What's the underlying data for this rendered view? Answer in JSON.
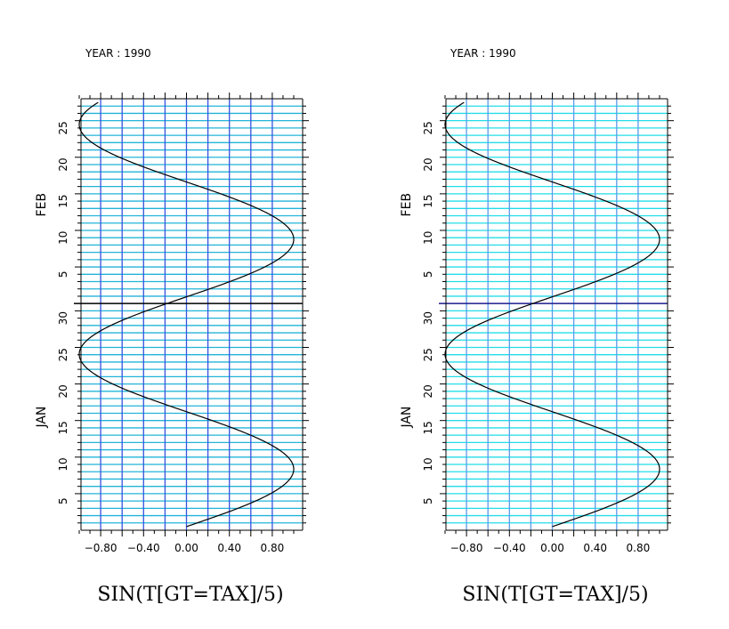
{
  "chart_data": [
    {
      "type": "line",
      "title": "YEAR : 1990",
      "xlabel": "SIN(T[GT=TAX]/5)",
      "xlim": [
        -1.0,
        1.0
      ],
      "x_ticks": [
        "-0.80",
        "-0.40",
        "0.00",
        "0.40",
        "0.80"
      ],
      "y_axis": {
        "months": [
          "JAN",
          "FEB"
        ],
        "jan_day_ticks": [
          "5",
          "10",
          "15",
          "20",
          "25",
          "30"
        ],
        "feb_day_ticks": [
          "5",
          "10",
          "15",
          "20",
          "25"
        ],
        "range": [
          "1990-01-01",
          "1990-02-28"
        ]
      },
      "grid": true,
      "colors": {
        "vertical_grid": "#3355dd",
        "horizontal_grid": "#22b4d8",
        "month_boundary": "#000000",
        "curve": "#000000"
      },
      "series": [
        {
          "x_formula": "sin(t/5), t = day index from 1990-01-01",
          "t_start": 0,
          "t_end": 58
        }
      ]
    },
    {
      "type": "line",
      "title": "YEAR : 1990",
      "xlabel": "SIN(T[GT=TAX]/5)",
      "xlim": [
        -1.0,
        1.0
      ],
      "x_ticks": [
        "-0.80",
        "-0.40",
        "0.00",
        "0.40",
        "0.80"
      ],
      "y_axis": {
        "months": [
          "JAN",
          "FEB"
        ],
        "jan_day_ticks": [
          "5",
          "10",
          "15",
          "20",
          "25",
          "30"
        ],
        "feb_day_ticks": [
          "5",
          "10",
          "15",
          "20",
          "25"
        ],
        "range": [
          "1990-01-01",
          "1990-02-28"
        ]
      },
      "grid": true,
      "colors": {
        "vertical_grid": "#5a9be8",
        "horizontal_grid": "#22dde8",
        "month_boundary": "#1c1c8c",
        "curve": "#000000"
      },
      "series": [
        {
          "x_formula": "sin(t/5), t = day index from 1990-01-01",
          "t_start": 0,
          "t_end": 58
        }
      ]
    }
  ]
}
